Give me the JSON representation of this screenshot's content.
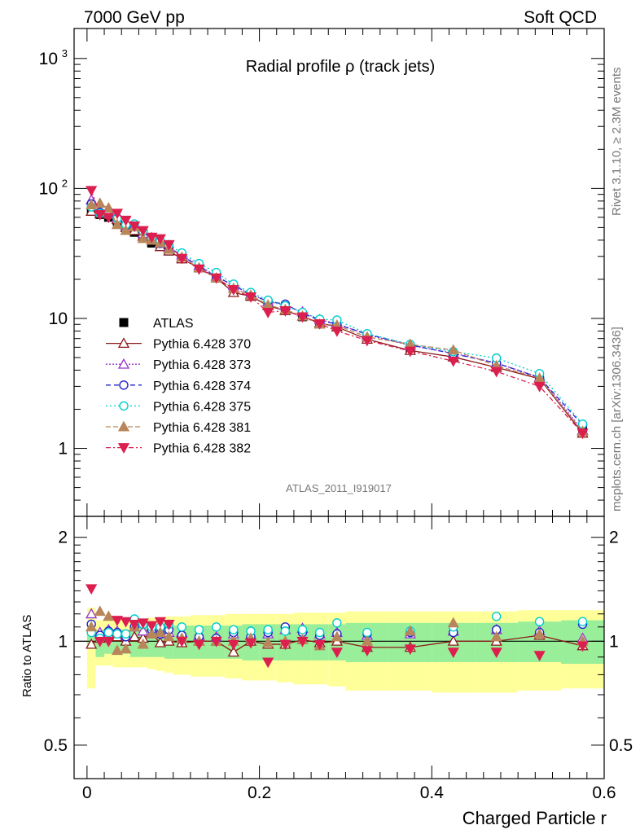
{
  "header": {
    "left": "7000 GeV pp",
    "right": "Soft QCD"
  },
  "side_text": {
    "rivet": "Rivet 3.1.10, ≥ 2.3M events",
    "mcplots": "mcplots.cern.ch [arXiv:1306.3436]"
  },
  "analysis_id": "ATLAS_2011_I919017",
  "chart_data": {
    "type": "line",
    "title": "Radial profile ρ (track jets)",
    "xlabel": "Charged Particle r",
    "ylabel": "",
    "xlim": [
      -0.015,
      0.6
    ],
    "ylim": [
      0.3,
      1700
    ],
    "yscale": "log",
    "ratio_ylabel": "Ratio to ATLAS",
    "ratio_ylim": [
      0.4,
      2.3
    ],
    "ratio_yscale": "log",
    "main_yticks": [
      {
        "value": 1,
        "label": "1"
      },
      {
        "value": 10,
        "label": "10"
      },
      {
        "value": 100,
        "label": "10",
        "sup": "2"
      },
      {
        "value": 1000,
        "label": "10",
        "sup": "3"
      }
    ],
    "ratio_yticks": [
      {
        "value": 0.5,
        "label": "0.5"
      },
      {
        "value": 1,
        "label": "1"
      },
      {
        "value": 2,
        "label": "2"
      }
    ],
    "xticks": [
      {
        "value": 0,
        "label": "0"
      },
      {
        "value": 0.2,
        "label": "0.2"
      },
      {
        "value": 0.4,
        "label": "0.4"
      },
      {
        "value": 0.6,
        "label": "0.6"
      }
    ],
    "x": [
      0.005,
      0.015,
      0.025,
      0.035,
      0.045,
      0.055,
      0.065,
      0.075,
      0.085,
      0.095,
      0.11,
      0.13,
      0.15,
      0.17,
      0.19,
      0.21,
      0.23,
      0.25,
      0.27,
      0.29,
      0.325,
      0.375,
      0.425,
      0.475,
      0.525,
      0.575
    ],
    "ratio_band_edges": [
      0,
      0.01,
      0.02,
      0.03,
      0.04,
      0.05,
      0.06,
      0.07,
      0.08,
      0.09,
      0.1,
      0.12,
      0.14,
      0.16,
      0.18,
      0.2,
      0.22,
      0.24,
      0.26,
      0.28,
      0.3,
      0.35,
      0.4,
      0.45,
      0.5,
      0.55,
      0.6
    ],
    "ratio_band_stat": [
      [
        0.95,
        1.06
      ],
      [
        0.9,
        1.08
      ],
      [
        0.92,
        1.08
      ],
      [
        0.92,
        1.08
      ],
      [
        0.92,
        1.08
      ],
      [
        0.9,
        1.1
      ],
      [
        0.9,
        1.1
      ],
      [
        0.9,
        1.1
      ],
      [
        0.9,
        1.1
      ],
      [
        0.89,
        1.11
      ],
      [
        0.89,
        1.11
      ],
      [
        0.89,
        1.11
      ],
      [
        0.89,
        1.11
      ],
      [
        0.89,
        1.11
      ],
      [
        0.88,
        1.12
      ],
      [
        0.88,
        1.12
      ],
      [
        0.88,
        1.12
      ],
      [
        0.88,
        1.12
      ],
      [
        0.88,
        1.12
      ],
      [
        0.88,
        1.12
      ],
      [
        0.87,
        1.13
      ],
      [
        0.87,
        1.13
      ],
      [
        0.87,
        1.13
      ],
      [
        0.87,
        1.13
      ],
      [
        0.87,
        1.14
      ],
      [
        0.86,
        1.15
      ]
    ],
    "ratio_band_total": [
      [
        0.73,
        1.25
      ],
      [
        0.85,
        1.15
      ],
      [
        0.85,
        1.15
      ],
      [
        0.84,
        1.16
      ],
      [
        0.84,
        1.16
      ],
      [
        0.84,
        1.16
      ],
      [
        0.84,
        1.16
      ],
      [
        0.83,
        1.17
      ],
      [
        0.82,
        1.17
      ],
      [
        0.81,
        1.18
      ],
      [
        0.8,
        1.18
      ],
      [
        0.79,
        1.19
      ],
      [
        0.79,
        1.19
      ],
      [
        0.78,
        1.2
      ],
      [
        0.77,
        1.2
      ],
      [
        0.77,
        1.2
      ],
      [
        0.76,
        1.2
      ],
      [
        0.75,
        1.21
      ],
      [
        0.75,
        1.21
      ],
      [
        0.74,
        1.21
      ],
      [
        0.72,
        1.22
      ],
      [
        0.72,
        1.22
      ],
      [
        0.71,
        1.22
      ],
      [
        0.71,
        1.22
      ],
      [
        0.72,
        1.23
      ],
      [
        0.73,
        1.23
      ]
    ],
    "series": [
      {
        "name": "ATLAS",
        "color": "#000000",
        "marker": "square",
        "dash": "none",
        "fill": true,
        "values": [
          68,
          63,
          60,
          56,
          50,
          46,
          42,
          38,
          36,
          33,
          29,
          24.5,
          20.5,
          17,
          14.8,
          12.8,
          11.7,
          10.3,
          9.3,
          8.6,
          7.2,
          5.9,
          5.05,
          4.2,
          3.3,
          1.35
        ],
        "errors": [
          6,
          4,
          3,
          3,
          2.5,
          2,
          2,
          2,
          2,
          1.5,
          1.2,
          1,
          0.8,
          0.7,
          0.6,
          0.5,
          0.5,
          0.4,
          0.35,
          0.3,
          0.3,
          0.25,
          0.2,
          0.2,
          0.15,
          0.08
        ]
      },
      {
        "name": "Pythia 6.428 370",
        "color": "#8b1a1a",
        "marker": "triangle-up",
        "dash": "none",
        "fill": false,
        "ratio_line": true,
        "ratio": [
          0.98,
          1.02,
          1.05,
          1.03,
          1.0,
          1.03,
          1.02,
          1.05,
          0.99,
          1.0,
          0.99,
          1.0,
          1.0,
          0.93,
          1.0,
          0.98,
          0.98,
          1.01,
          0.99,
          1.0,
          0.96,
          0.96,
          1.0,
          1.0,
          1.04,
          0.97
        ]
      },
      {
        "name": "Pythia 6.428 373",
        "color": "#9932cc",
        "marker": "triangle-up",
        "dash": "2,2",
        "fill": false,
        "ratio": [
          1.2,
          1.06,
          1.08,
          1.07,
          1.04,
          1.1,
          1.07,
          1.1,
          1.05,
          1.06,
          1.06,
          1.04,
          1.03,
          1.05,
          1.04,
          1.05,
          1.08,
          1.09,
          1.05,
          1.06,
          1.04,
          1.05,
          1.07,
          1.08,
          1.07,
          1.02
        ]
      },
      {
        "name": "Pythia 6.428 374",
        "color": "#2222cc",
        "marker": "circle",
        "dash": "6,4",
        "fill": false,
        "ratio": [
          1.12,
          1.04,
          1.07,
          1.06,
          1.03,
          1.1,
          1.12,
          1.08,
          1.05,
          1.08,
          1.04,
          1.03,
          1.02,
          1.06,
          1.03,
          1.06,
          1.1,
          1.06,
          1.04,
          1.05,
          1.05,
          1.06,
          1.06,
          1.08,
          1.06,
          1.12
        ]
      },
      {
        "name": "Pythia 6.428 375",
        "color": "#00cccc",
        "marker": "circle",
        "dash": "2,3",
        "fill": false,
        "ratio": [
          1.06,
          1.02,
          1.06,
          1.05,
          1.05,
          1.16,
          1.12,
          1.1,
          1.1,
          1.12,
          1.1,
          1.08,
          1.1,
          1.08,
          1.07,
          1.08,
          1.07,
          1.08,
          1.06,
          1.13,
          1.06,
          1.07,
          1.1,
          1.18,
          1.14,
          1.14
        ]
      },
      {
        "name": "Pythia 6.428 381",
        "color": "#b8865a",
        "marker": "triangle-up",
        "dash": "6,3",
        "fill": true,
        "ratio": [
          1.1,
          1.22,
          1.18,
          0.94,
          0.95,
          1.1,
          0.98,
          1.05,
          1.06,
          1.03,
          1.02,
          1.0,
          1.0,
          1.0,
          1.02,
          0.99,
          1.0,
          1.01,
          0.97,
          1.03,
          1.0,
          1.07,
          1.13,
          1.03,
          1.05,
          1.0
        ]
      },
      {
        "name": "Pythia 6.428 382",
        "color": "#dc1f4f",
        "marker": "triangle-down",
        "dash": "6,3,2,3",
        "fill": true,
        "ratio": [
          1.42,
          1.0,
          1.0,
          1.15,
          1.14,
          1.12,
          1.13,
          1.11,
          1.14,
          1.12,
          1.0,
          0.98,
          1.0,
          0.98,
          0.99,
          0.87,
          0.98,
          1.0,
          0.98,
          0.93,
          0.94,
          0.95,
          0.93,
          0.93,
          0.91,
          0.97
        ]
      }
    ]
  }
}
